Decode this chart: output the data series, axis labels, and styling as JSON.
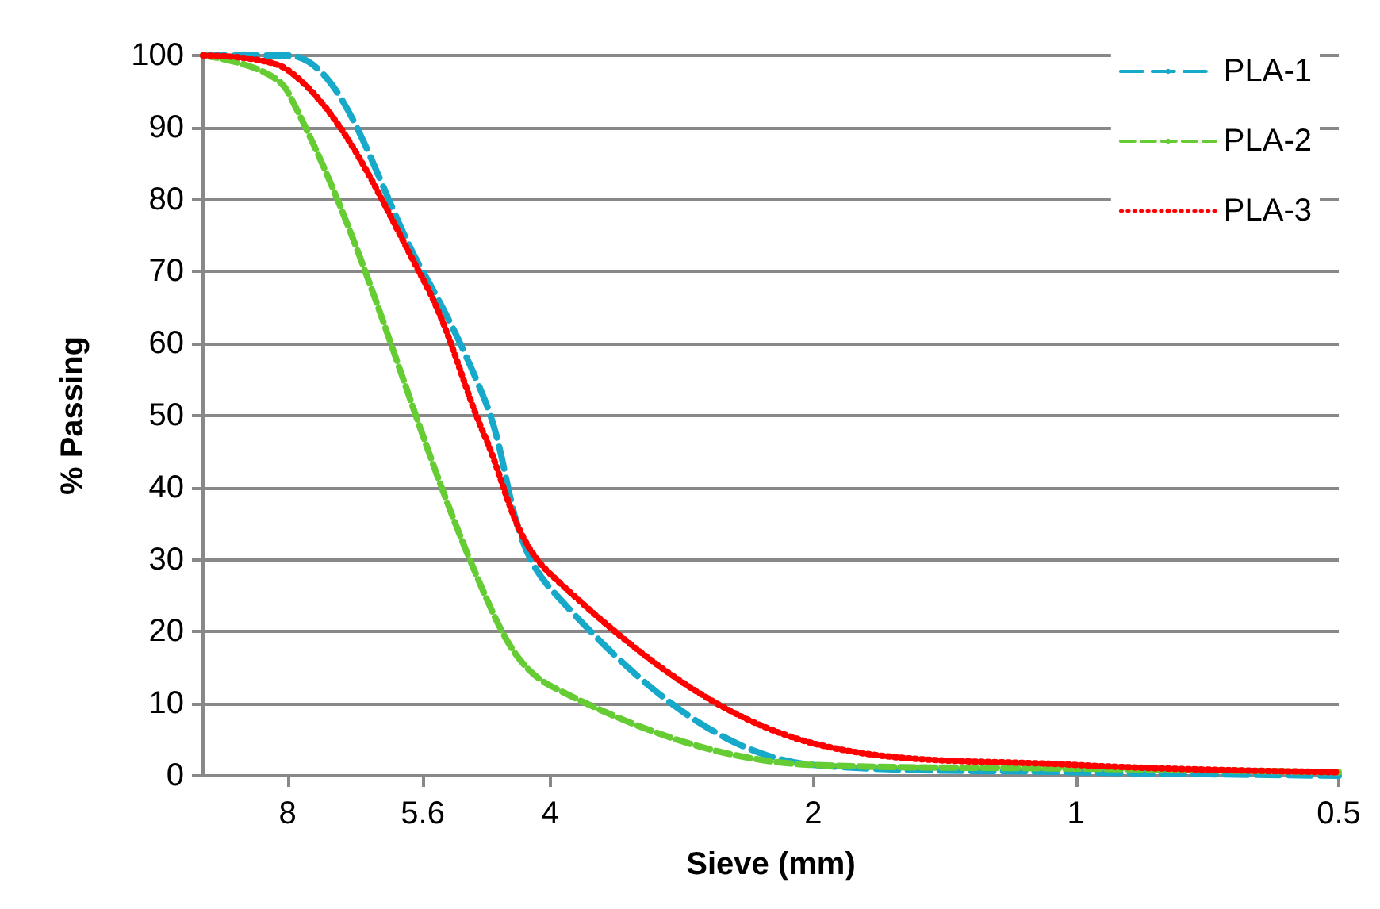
{
  "chart_data": {
    "type": "line",
    "xlabel": "Sieve (mm)",
    "ylabel": "% Passing",
    "log": "x",
    "xlim": [
      10,
      0.5
    ],
    "xticks": [
      8,
      5.6,
      4,
      2,
      1,
      0.5
    ],
    "ylim": [
      0,
      100
    ],
    "yticks": [
      0,
      10,
      20,
      30,
      40,
      50,
      60,
      70,
      80,
      90,
      100
    ],
    "grid": "y",
    "legend": "top right",
    "marker": "none",
    "series": [
      {
        "name": "PLA-1",
        "color": "#17a9c9",
        "line_style": "dashed",
        "x": [
          10,
          8,
          5.6,
          4.75,
          4,
          2,
          1,
          0.5
        ],
        "values": [
          100,
          100,
          70,
          52,
          26,
          1.5,
          0.5,
          0
        ]
      },
      {
        "name": "PLA-2",
        "color": "#66cc33",
        "line_style": "dashed",
        "x": [
          10,
          8,
          4.75,
          4,
          2,
          1,
          0.5
        ],
        "values": [
          100,
          95,
          25,
          12.5,
          1.5,
          1,
          0.5
        ]
      },
      {
        "name": "PLA-3",
        "color": "#ff0000",
        "line_style": "dotted",
        "x": [
          10,
          8,
          5.6,
          4.75,
          4,
          2,
          1,
          0.5
        ],
        "values": [
          100,
          98,
          69,
          47,
          28,
          4.5,
          1.5,
          0.5
        ]
      }
    ]
  }
}
